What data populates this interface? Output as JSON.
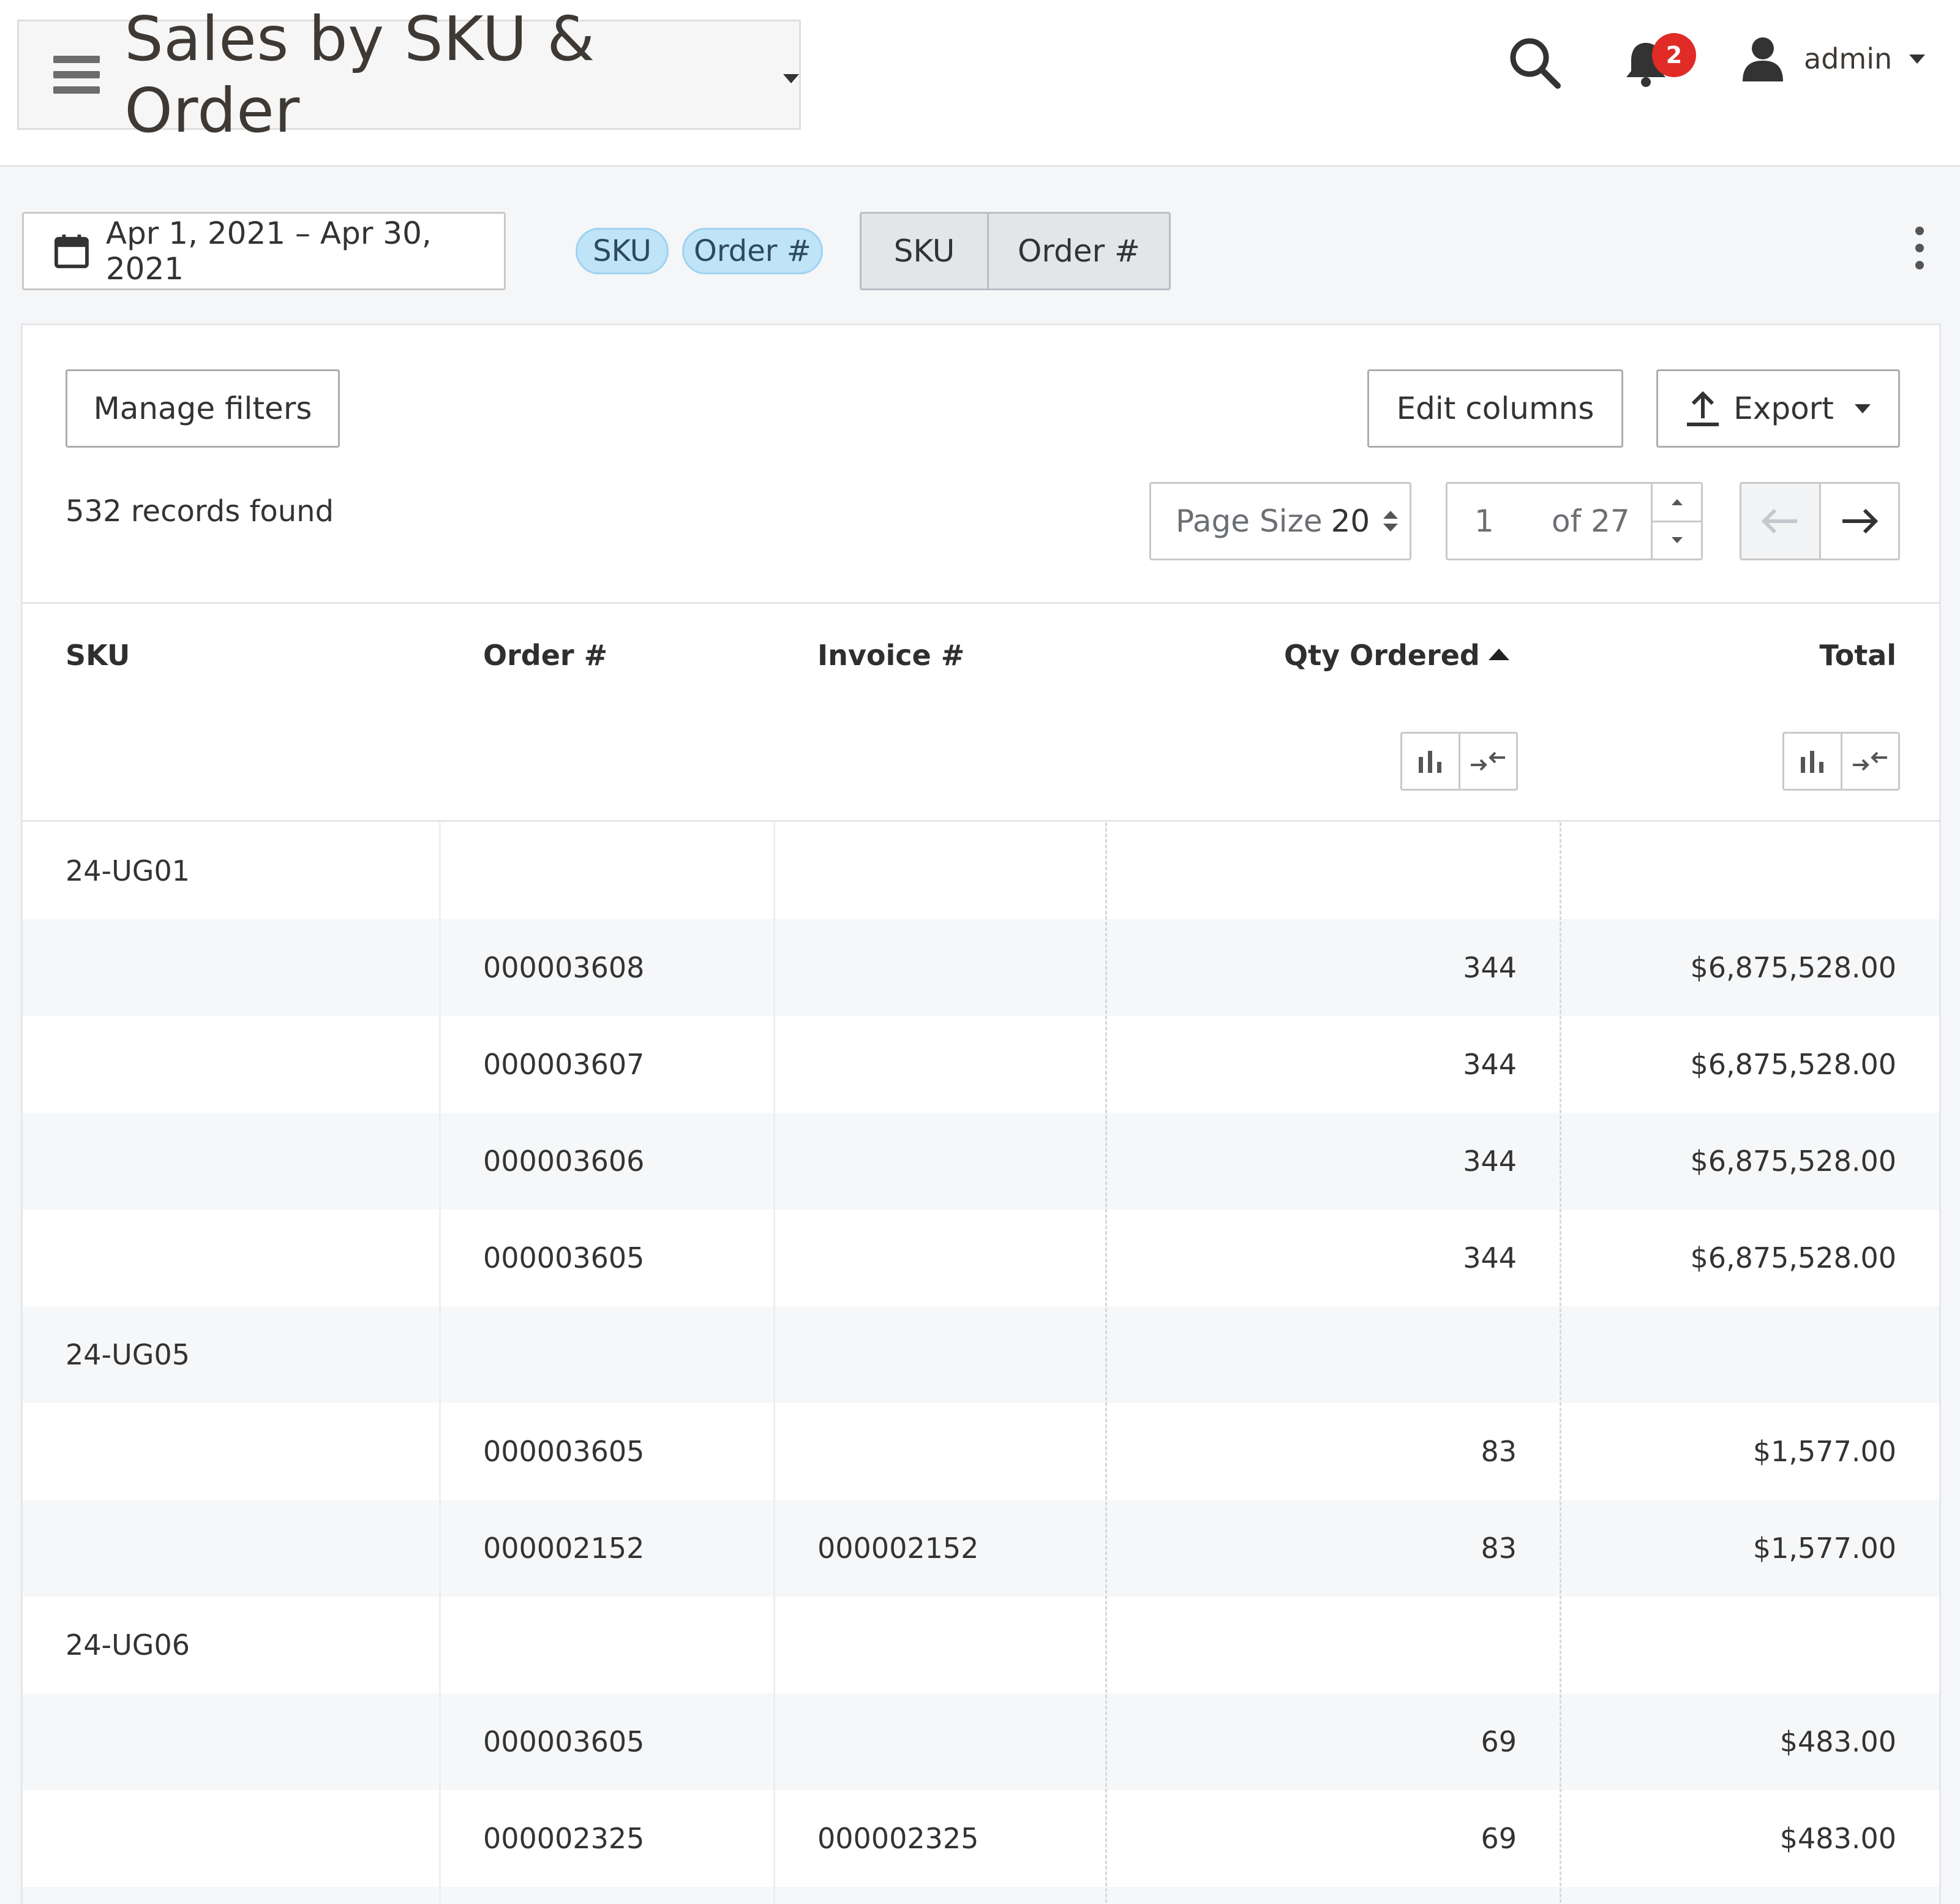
{
  "header": {
    "title": "Sales by SKU & Order",
    "notifications_count": "2",
    "user_label": "admin"
  },
  "toolbar": {
    "date_range": "Apr 1, 2021 – Apr 30, 2021",
    "group_pills": [
      "SKU",
      "Order #"
    ],
    "segments": [
      "SKU",
      "Order #"
    ]
  },
  "panel": {
    "manage_filters": "Manage filters",
    "edit_columns": "Edit columns",
    "export": "Export",
    "records_found": "532 records found",
    "page_size_label": "Page Size",
    "page_size_value": "20",
    "current_page": "1",
    "page_of": "of 27"
  },
  "table": {
    "columns": [
      "SKU",
      "Order #",
      "Invoice #",
      "Qty Ordered",
      "Total"
    ],
    "sorted_column": "Qty Ordered",
    "sort_direction": "ascending",
    "rows": [
      {
        "sku": "24-UG01",
        "order": "",
        "invoice": "",
        "qty": "",
        "total": ""
      },
      {
        "sku": "",
        "order": "000003608",
        "invoice": "",
        "qty": "344",
        "total": "$6,875,528.00"
      },
      {
        "sku": "",
        "order": "000003607",
        "invoice": "",
        "qty": "344",
        "total": "$6,875,528.00"
      },
      {
        "sku": "",
        "order": "000003606",
        "invoice": "",
        "qty": "344",
        "total": "$6,875,528.00"
      },
      {
        "sku": "",
        "order": "000003605",
        "invoice": "",
        "qty": "344",
        "total": "$6,875,528.00"
      },
      {
        "sku": "24-UG05",
        "order": "",
        "invoice": "",
        "qty": "",
        "total": ""
      },
      {
        "sku": "",
        "order": "000003605",
        "invoice": "",
        "qty": "83",
        "total": "$1,577.00"
      },
      {
        "sku": "",
        "order": "000002152",
        "invoice": "000002152",
        "qty": "83",
        "total": "$1,577.00"
      },
      {
        "sku": "24-UG06",
        "order": "",
        "invoice": "",
        "qty": "",
        "total": ""
      },
      {
        "sku": "",
        "order": "000003605",
        "invoice": "",
        "qty": "69",
        "total": "$483.00"
      },
      {
        "sku": "",
        "order": "000002325",
        "invoice": "000002325",
        "qty": "69",
        "total": "$483.00"
      },
      {
        "sku": "",
        "order": "",
        "invoice": "",
        "qty": "",
        "total": ""
      }
    ]
  },
  "icons": {
    "menu": "hamburger-icon",
    "search": "search-icon",
    "bell": "bell-icon",
    "user": "user-icon",
    "calendar": "calendar-icon",
    "upload": "upload-icon",
    "more": "more-vertical-icon"
  },
  "colors": {
    "badge": "#e02b27",
    "pill": "#bfe3f7",
    "alt_row": "#f6f7f8"
  }
}
